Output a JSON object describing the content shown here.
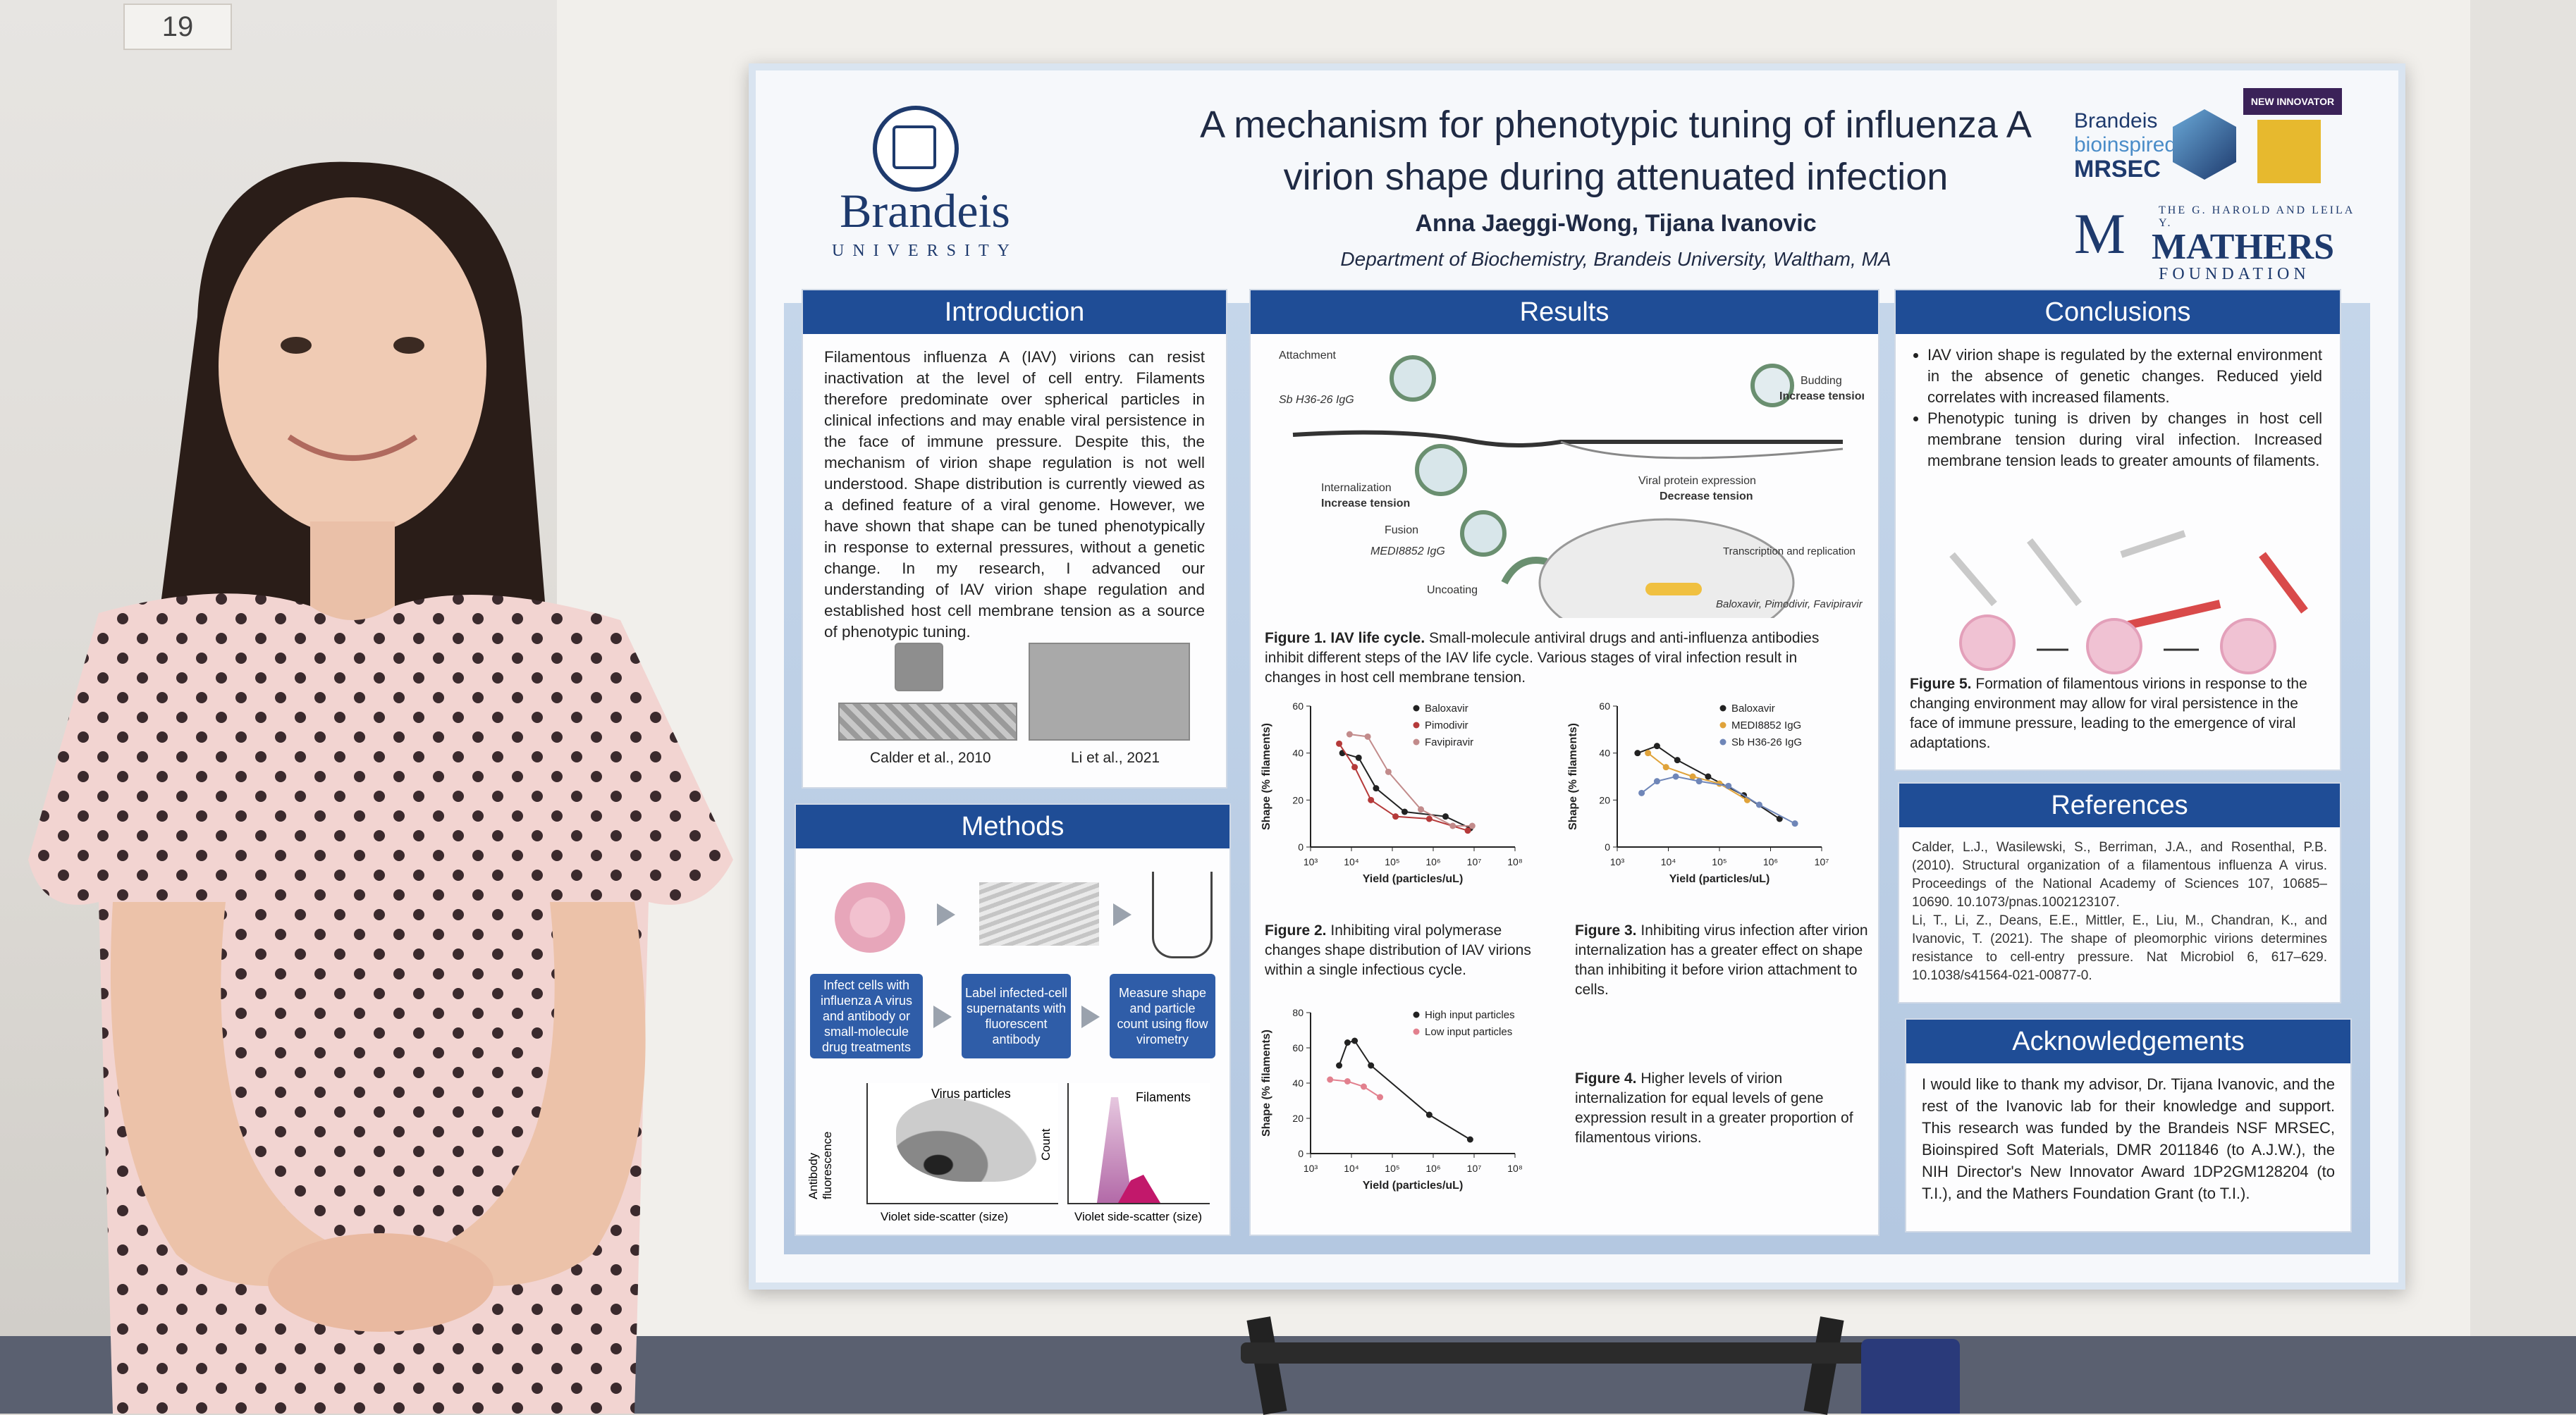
{
  "booth_number": "19",
  "poster": {
    "title_line1": "A mechanism for phenotypic tuning of influenza A",
    "title_line2": "virion shape during attenuated infection",
    "authors": "Anna Jaeggi-Wong, Tijana Ivanovic",
    "department": "Department of Biochemistry, Brandeis University, Waltham, MA",
    "logos": {
      "brandeis": "Brandeis",
      "university": "UNIVERSITY",
      "mrsec_line1": "Brandeis",
      "mrsec_line2": "bioinspired",
      "mrsec_line3": "MRSEC",
      "innovator": "NEW INNOVATOR",
      "mathers_small": "THE G. HAROLD AND LEILA Y.",
      "mathers_big": "MATHERS",
      "mathers_found": "FOUNDATION"
    },
    "introduction": {
      "heading": "Introduction",
      "text": "Filamentous influenza A (IAV) virions can resist inactivation at the level of cell entry. Filaments therefore predominate over spherical particles in clinical infections and may enable viral persistence in the face of immune pressure. Despite this, the mechanism of virion shape regulation is not well understood. Shape distribution is currently viewed as a defined feature of a viral genome. However, we have shown that shape can be tuned phenotypically in response to external pressures, without a genetic change. In my research, I advanced our understanding of IAV virion shape regulation and established host cell membrane tension as a source of phenotypic tuning.",
      "img_caption_left": "Calder et al., 2010",
      "img_caption_right": "Li et al., 2021"
    },
    "methods": {
      "heading": "Methods",
      "step1": "Infect cells with influenza A virus and antibody or small-molecule drug treatments",
      "step2": "Label infected-cell supernatants with fluorescent antibody",
      "step3": "Measure shape and particle count using flow virometry",
      "plot1_ylabel": "Antibody fluorescence",
      "plot1_label": "Virus particles",
      "plot1_xlabel": "Violet side-scatter (size)",
      "plot2_ylabel": "Count",
      "plot2_label": "Filaments",
      "plot2_xlabel": "Violet side-scatter (size)"
    },
    "results": {
      "heading": "Results",
      "lifecycle_labels": {
        "attachment": "Attachment",
        "attachment_drug": "Sb H36-26 IgG",
        "internalization": "Internalization",
        "internalization_effect": "Increase tension",
        "fusion": "Fusion",
        "fusion_drug": "MEDI8852 IgG",
        "uncoating": "Uncoating",
        "budding": "Budding",
        "budding_effect": "Increase tension",
        "protein_expression": "Viral protein expression",
        "protein_effect": "Decrease tension",
        "transcription": "Transcription and replication",
        "transcription_drugs": "Baloxavir, Pimodivir, Favipiravir"
      },
      "fig1_label": "Figure 1. IAV life cycle.",
      "fig1_text": " Small-molecule antiviral drugs and anti-influenza antibodies inhibit different steps of the IAV life cycle. Various stages of viral infection result in changes in host cell membrane tension.",
      "fig2_label": "Figure 2.",
      "fig2_text": " Inhibiting viral polymerase changes shape distribution of IAV virions within a single infectious cycle.",
      "fig3_label": "Figure 3.",
      "fig3_text": " Inhibiting virus infection after virion internalization  has a greater effect on shape than inhibiting it before virion attachment to cells.",
      "fig4_label": "Figure 4.",
      "fig4_text": " Higher levels of virion internalization for equal levels of gene expression result in a greater proportion of filamentous virions."
    },
    "conclusions": {
      "heading": "Conclusions",
      "bullet1": "IAV virion shape is regulated by the external environment in the absence of genetic changes. Reduced yield correlates with increased filaments.",
      "bullet2": "Phenotypic tuning is driven by changes in host cell membrane tension during viral infection. Increased membrane tension leads to greater amounts of filaments.",
      "fig5_label": "Figure 5.",
      "fig5_text": " Formation of filamentous virions in response to the changing environment may  allow for viral persistence in the face of immune pressure, leading to the emergence of viral adaptations."
    },
    "references": {
      "heading": "References",
      "ref1": "Calder, L.J., Wasilewski, S., Berriman, J.A., and Rosenthal, P.B. (2010). Structural organization of a filamentous influenza A virus. Proceedings of the National Academy of Sciences 107, 10685–10690. 10.1073/pnas.1002123107.",
      "ref2": "Li, T., Li, Z., Deans, E.E., Mittler, E., Liu, M., Chandran, K., and Ivanovic, T. (2021). The shape of pleomorphic virions determines resistance to cell-entry pressure. Nat Microbiol 6, 617–629. 10.1038/s41564-021-00877-0."
    },
    "acknowledgements": {
      "heading": "Acknowledgements",
      "text": "I would like to thank my advisor, Dr. Tijana Ivanovic, and the rest of the Ivanovic lab for their knowledge and support. This research was funded by the Brandeis NSF MRSEC, Bioinspired Soft Materials, DMR 2011846 (to A.J.W.), the NIH Director's New Innovator Award 1DP2GM128204 (to T.I.), and the Mathers Foundation Grant (to T.I.)."
    }
  },
  "chart_data": [
    {
      "type": "line",
      "ylabel": "Shape (% filaments)",
      "xlabel": "Yield (particles/uL)",
      "x_scale": "log",
      "xlim": [
        1000,
        100000000
      ],
      "ylim": [
        0,
        60
      ],
      "x_ticks": [
        "10³",
        "10⁴",
        "10⁵",
        "10⁶",
        "10⁷",
        "10⁸"
      ],
      "y_ticks": [
        "0",
        "20",
        "40",
        "60"
      ],
      "legend": "top-right",
      "series": [
        {
          "name": "Baloxavir",
          "color": "#222222",
          "points": [
            [
              6000,
              40
            ],
            [
              15000,
              38
            ],
            [
              40000,
              25
            ],
            [
              200000,
              15
            ],
            [
              2000000,
              13
            ],
            [
              8000000,
              8
            ]
          ]
        },
        {
          "name": "Pimodivir",
          "color": "#b53a3a",
          "points": [
            [
              5000,
              44
            ],
            [
              12000,
              34
            ],
            [
              30000,
              20
            ],
            [
              120000,
              13
            ],
            [
              800000,
              12
            ],
            [
              7000000,
              7
            ]
          ]
        },
        {
          "name": "Favipiravir",
          "color": "#c28b8b",
          "points": [
            [
              9000,
              48
            ],
            [
              25000,
              47
            ],
            [
              80000,
              32
            ],
            [
              500000,
              16
            ],
            [
              3000000,
              9
            ],
            [
              9000000,
              9
            ]
          ]
        }
      ]
    },
    {
      "type": "line",
      "ylabel": "Shape (% filaments)",
      "xlabel": "Yield (particles/uL)",
      "x_scale": "log",
      "xlim": [
        1000,
        10000000
      ],
      "ylim": [
        0,
        60
      ],
      "x_ticks": [
        "10³",
        "10⁴",
        "10⁵",
        "10⁶",
        "10⁷"
      ],
      "y_ticks": [
        "0",
        "20",
        "40",
        "60"
      ],
      "legend": "top-right",
      "series": [
        {
          "name": "Baloxavir",
          "color": "#222222",
          "points": [
            [
              2500,
              40
            ],
            [
              6000,
              43
            ],
            [
              15000,
              37
            ],
            [
              60000,
              30
            ],
            [
              300000,
              22
            ],
            [
              1500000,
              12
            ]
          ]
        },
        {
          "name": "MEDI8852 IgG",
          "color": "#e0a33a",
          "points": [
            [
              4000,
              40
            ],
            [
              9000,
              34
            ],
            [
              30000,
              30
            ],
            [
              100000,
              27
            ],
            [
              350000,
              20
            ]
          ]
        },
        {
          "name": "Sb H36-26 IgG",
          "color": "#6f86b8",
          "points": [
            [
              3000,
              23
            ],
            [
              6000,
              28
            ],
            [
              14000,
              30
            ],
            [
              40000,
              28
            ],
            [
              150000,
              26
            ],
            [
              600000,
              18
            ],
            [
              3000000,
              10
            ]
          ]
        }
      ]
    },
    {
      "type": "line",
      "ylabel": "Shape (% filaments)",
      "xlabel": "Yield (particles/uL)",
      "x_scale": "log",
      "xlim": [
        1000,
        100000000
      ],
      "ylim": [
        0,
        80
      ],
      "x_ticks": [
        "10³",
        "10⁴",
        "10⁵",
        "10⁶",
        "10⁷",
        "10⁸"
      ],
      "y_ticks": [
        "0",
        "20",
        "40",
        "60",
        "80"
      ],
      "legend": "top-right",
      "series": [
        {
          "name": "High input particles",
          "color": "#222222",
          "points": [
            [
              5000,
              50
            ],
            [
              8000,
              63
            ],
            [
              12000,
              64
            ],
            [
              30000,
              50
            ],
            [
              800000,
              22
            ],
            [
              8000000,
              8
            ]
          ]
        },
        {
          "name": "Low input particles",
          "color": "#e2808e",
          "points": [
            [
              3000,
              42
            ],
            [
              8000,
              41
            ],
            [
              20000,
              38
            ],
            [
              50000,
              32
            ]
          ]
        }
      ]
    }
  ]
}
